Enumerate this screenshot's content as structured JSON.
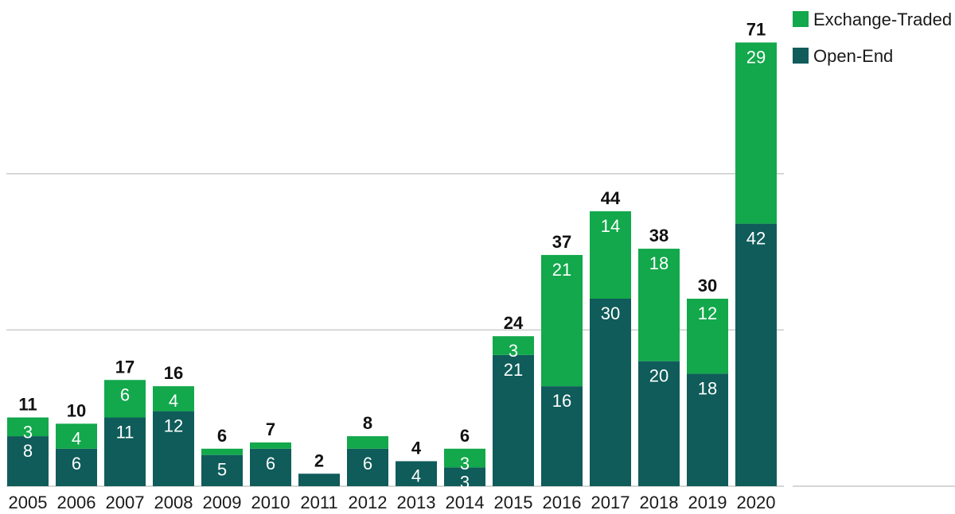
{
  "chart_data": {
    "type": "bar",
    "stacked": true,
    "categories": [
      "2005",
      "2006",
      "2007",
      "2008",
      "2009",
      "2010",
      "2011",
      "2012",
      "2013",
      "2014",
      "2015",
      "2016",
      "2017",
      "2018",
      "2019",
      "2020"
    ],
    "series": [
      {
        "name": "Open-End",
        "color": "#0f5c5a",
        "values": [
          8,
          6,
          11,
          12,
          5,
          6,
          2,
          6,
          4,
          3,
          21,
          16,
          30,
          20,
          18,
          42
        ]
      },
      {
        "name": "Exchange-Traded",
        "color": "#12a84b",
        "values": [
          3,
          4,
          6,
          4,
          1,
          1,
          0,
          2,
          0,
          3,
          3,
          21,
          14,
          18,
          12,
          29
        ]
      }
    ],
    "segment_labels": {
      "Open-End": [
        "8",
        "6",
        "11",
        "12",
        "5",
        "6",
        "",
        "6",
        "4",
        "3",
        "21",
        "16",
        "30",
        "20",
        "18",
        "42"
      ],
      "Exchange-Traded": [
        "3",
        "4",
        "6",
        "4",
        "",
        "",
        "",
        "",
        "",
        "3",
        "3",
        "21",
        "14",
        "18",
        "12",
        "29"
      ]
    },
    "totals": [
      11,
      10,
      17,
      16,
      6,
      7,
      2,
      8,
      4,
      6,
      24,
      37,
      44,
      38,
      30,
      71
    ],
    "ylim": [
      0,
      75
    ],
    "gridlines": [
      25,
      50
    ],
    "grid": true,
    "legend_position": "top-right",
    "title": "",
    "xlabel": "",
    "ylabel": ""
  },
  "legend": {
    "exchange_traded": "Exchange-Traded",
    "open_end": "Open-End"
  }
}
